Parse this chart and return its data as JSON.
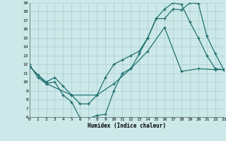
{
  "xlabel": "Humidex (Indice chaleur)",
  "bg_color": "#cce8e8",
  "grid_color": "#aacccc",
  "line_color": "#1a6b6b",
  "xlim": [
    0,
    23
  ],
  "ylim": [
    6,
    19
  ],
  "xticks": [
    0,
    1,
    2,
    3,
    4,
    5,
    6,
    7,
    8,
    9,
    10,
    11,
    12,
    13,
    14,
    15,
    16,
    17,
    18,
    19,
    20,
    21,
    22,
    23
  ],
  "yticks": [
    6,
    7,
    8,
    9,
    10,
    11,
    12,
    13,
    14,
    15,
    16,
    17,
    18,
    19
  ],
  "curve1_x": [
    0,
    1,
    2,
    3,
    4,
    5,
    6,
    7,
    8,
    9,
    10,
    11,
    12,
    13,
    14,
    15,
    16,
    17,
    18,
    19,
    20,
    21,
    22,
    23
  ],
  "curve1_y": [
    12,
    10.5,
    9.8,
    10.0,
    8.5,
    7.7,
    5.9,
    5.8,
    6.2,
    6.3,
    9.0,
    11.0,
    11.5,
    13.2,
    15.0,
    17.2,
    17.2,
    18.3,
    18.2,
    19.0,
    18.9,
    15.2,
    13.2,
    11.4
  ],
  "curve2_x": [
    0,
    1,
    2,
    3,
    4,
    5,
    6,
    7,
    8,
    9,
    10,
    11,
    12,
    13,
    14,
    15,
    16,
    17,
    18,
    19,
    20,
    21,
    22,
    23
  ],
  "curve2_y": [
    11.8,
    10.8,
    10.0,
    10.5,
    9.5,
    8.5,
    7.5,
    7.5,
    8.5,
    10.5,
    12.0,
    12.5,
    13.0,
    13.5,
    15.0,
    17.2,
    18.3,
    19.0,
    18.8,
    16.8,
    15.0,
    13.0,
    11.5,
    11.4
  ],
  "curve3_x": [
    0,
    2,
    5,
    8,
    10,
    12,
    14,
    16,
    18,
    20,
    22,
    23
  ],
  "curve3_y": [
    11.8,
    9.8,
    8.5,
    8.5,
    9.8,
    11.5,
    13.5,
    16.2,
    11.2,
    11.5,
    11.4,
    11.4
  ]
}
